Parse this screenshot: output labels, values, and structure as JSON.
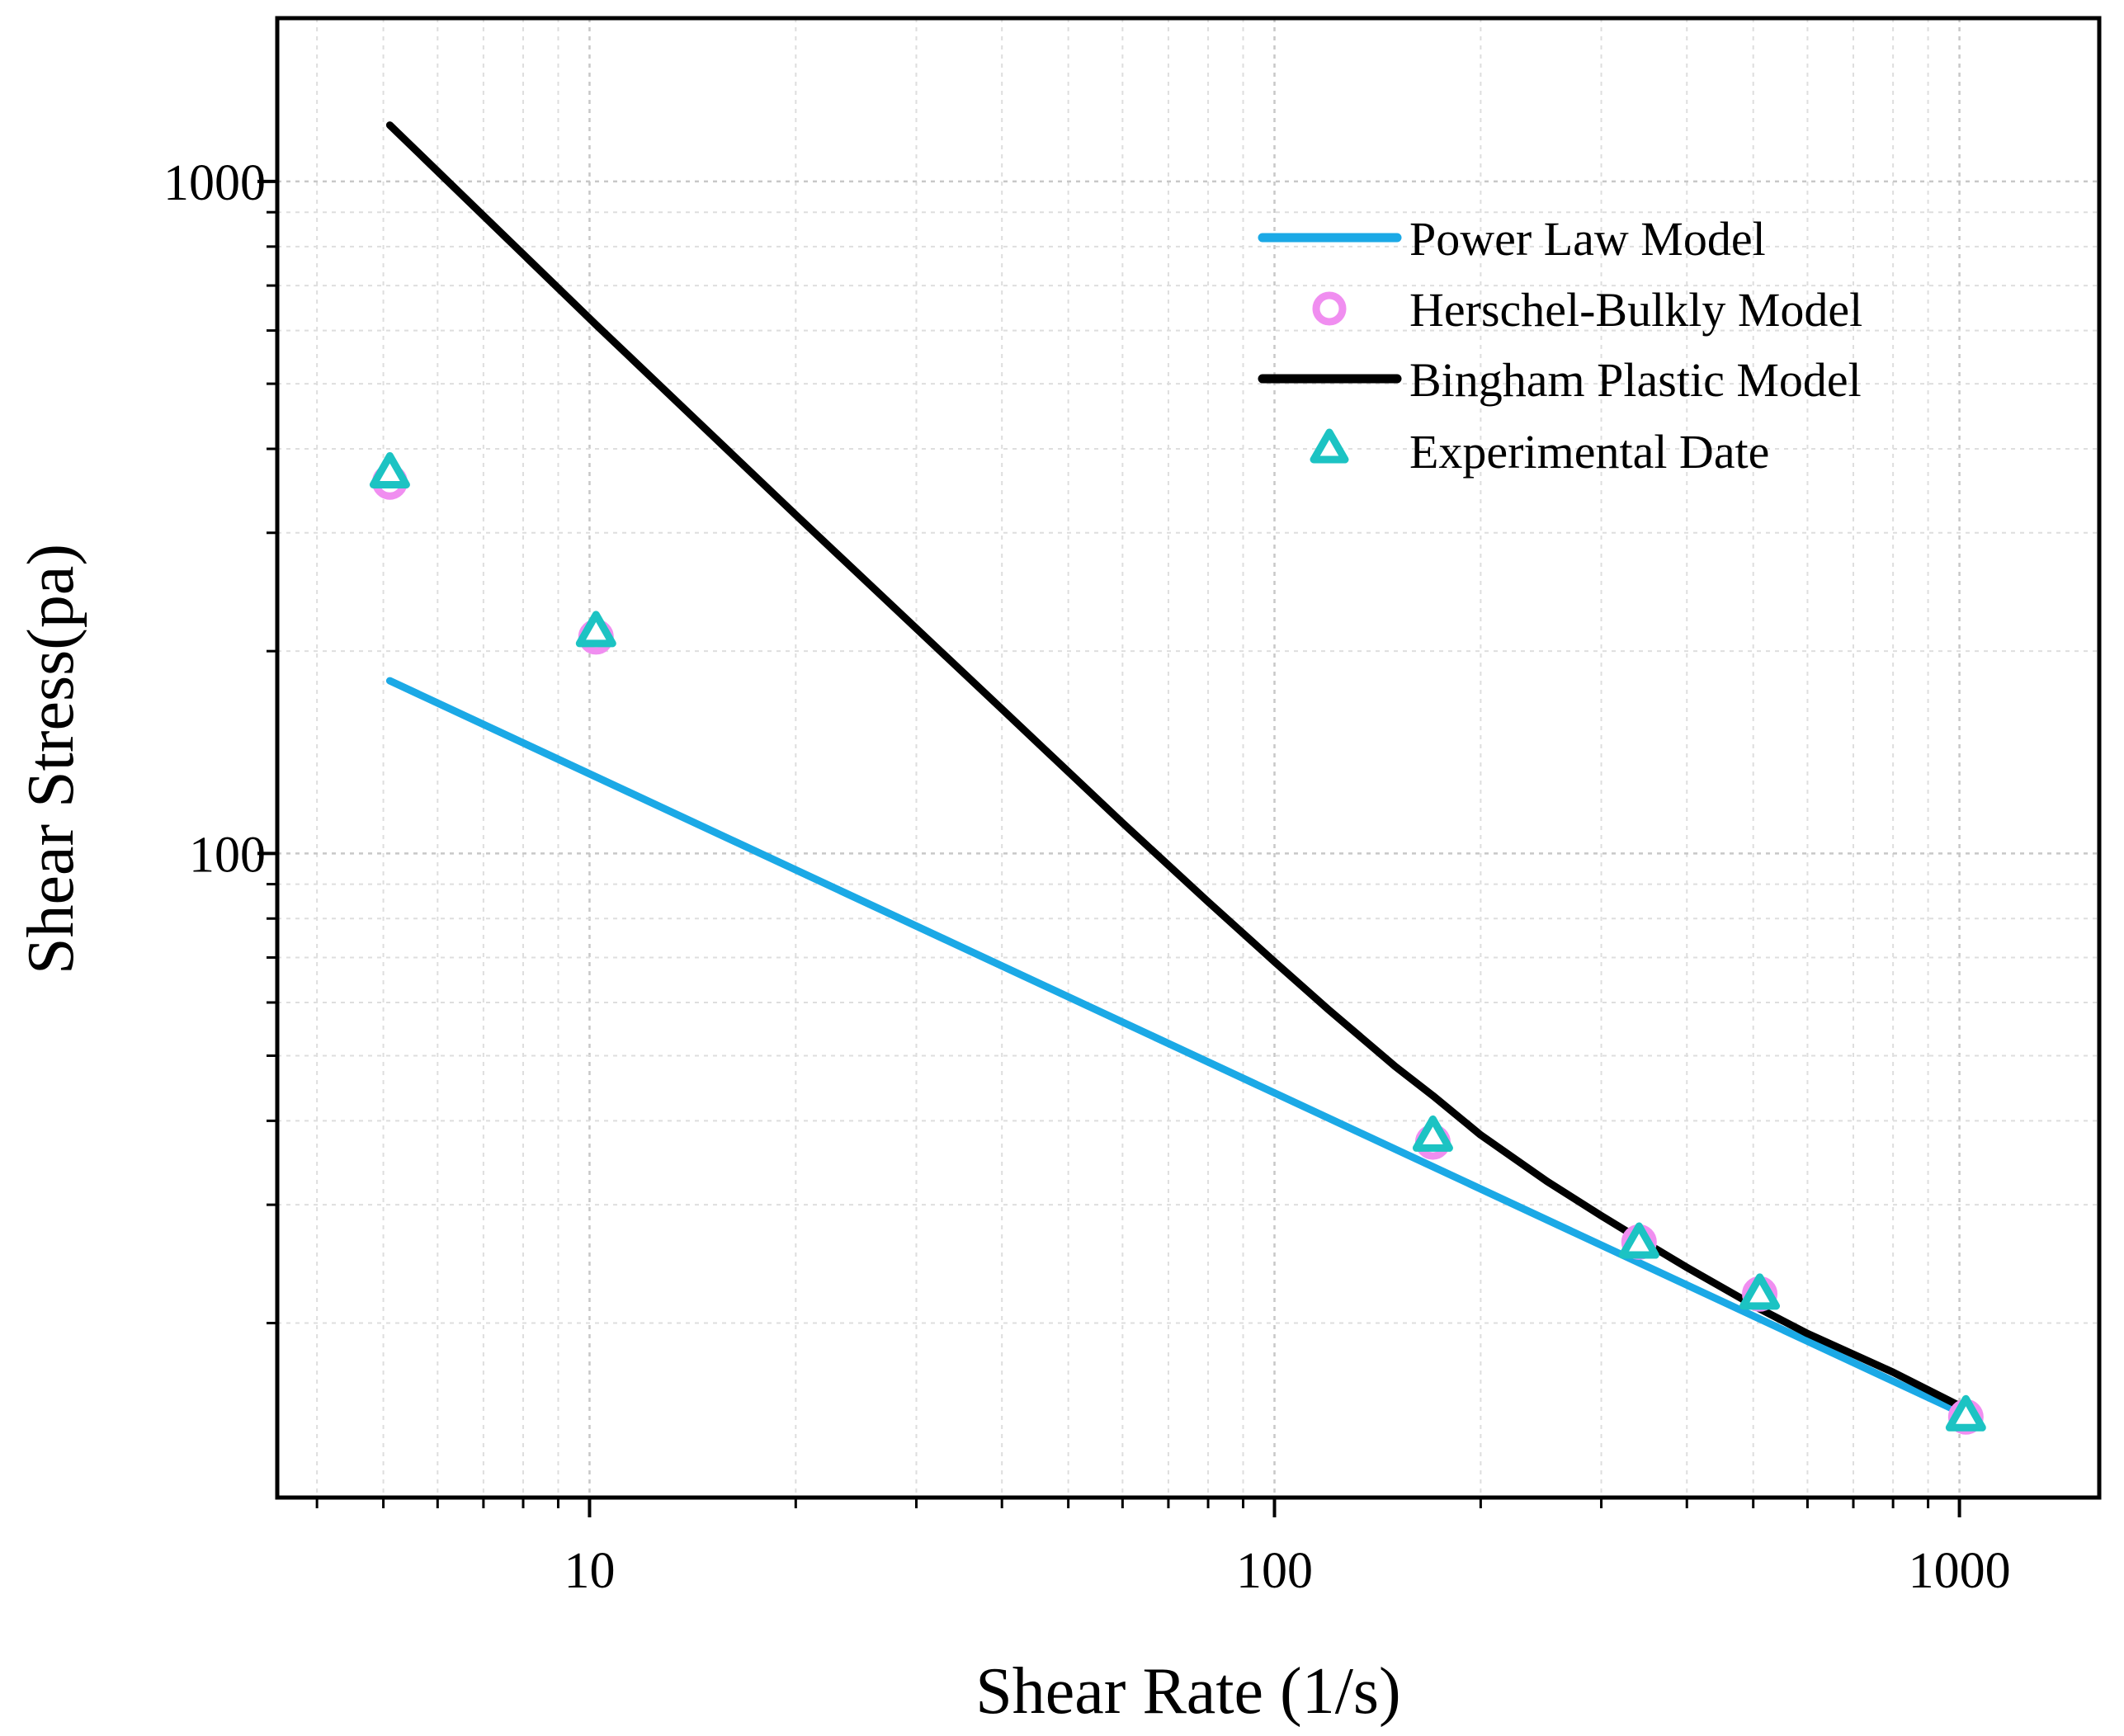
{
  "chart_data": {
    "type": "line",
    "xscale": "log",
    "yscale": "log",
    "xlabel": "Shear Rate (1/s)",
    "ylabel": "Shear Stress(pa)",
    "xlim": [
      3.5,
      1600
    ],
    "ylim": [
      11,
      1750
    ],
    "x_ticks": [
      10,
      100,
      1000
    ],
    "y_ticks": [
      100,
      1000
    ],
    "x_tick_labels": [
      "10",
      "100",
      "1000"
    ],
    "y_tick_labels": [
      "100",
      "1000"
    ],
    "grid": true,
    "legend_position": "top-right",
    "legend": [
      {
        "label": "Power Law Model",
        "marker": "line",
        "color": "#1ba9e6"
      },
      {
        "label": "Herschel-Bulkly Model",
        "marker": "circle",
        "color": "#f08ef0"
      },
      {
        "label": "Bingham Plastic Model",
        "marker": "line",
        "color": "#000000"
      },
      {
        "label": "Experimental Date",
        "marker": "triangle",
        "color": "#1cc3c3"
      }
    ],
    "series": [
      {
        "name": "Power Law Model",
        "style": "line",
        "color": "#1ba9e6",
        "x": [
          5.11,
          1021.8
        ],
        "y": [
          180.7,
          14.6
        ]
      },
      {
        "name": "Bingham Plastic Model",
        "style": "line",
        "color": "#000000",
        "x": [
          5.11,
          10.22,
          20,
          40,
          60,
          80,
          100,
          120,
          150,
          170.3,
          200,
          250,
          300,
          340.6,
          400,
          511,
          600,
          800,
          1021.8
        ],
        "y": [
          1213,
          612,
          319,
          164,
          111,
          84.7,
          69.0,
          58.5,
          48.2,
          43.6,
          38.1,
          32.5,
          28.9,
          26.7,
          24.2,
          21.0,
          19.3,
          16.9,
          14.9
        ]
      },
      {
        "name": "Herschel-Bulkly Model",
        "style": "markers",
        "marker": "circle",
        "color": "#f08ef0",
        "x": [
          5.11,
          10.22,
          170.3,
          340.6,
          511,
          1021.8
        ],
        "y": [
          357,
          210,
          37.2,
          26.4,
          22.1,
          14.5
        ]
      },
      {
        "name": "Experimental Date",
        "style": "markers",
        "marker": "triangle",
        "color": "#1cc3c3",
        "x": [
          5.11,
          10.22,
          170.3,
          340.6,
          511,
          1021.8
        ],
        "y": [
          367,
          213,
          37.8,
          26.2,
          22.0,
          14.5
        ]
      }
    ]
  }
}
